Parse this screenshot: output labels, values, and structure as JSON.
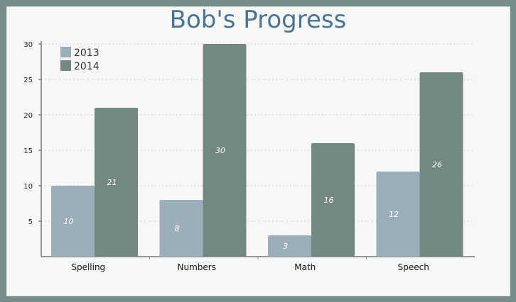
{
  "chart_data": {
    "type": "bar",
    "title": "Bob's Progress",
    "categories": [
      "Spelling",
      "Numbers",
      "Math",
      "Speech"
    ],
    "series": [
      {
        "name": "2013",
        "values": [
          10,
          8,
          3,
          12
        ],
        "color": "#9caeba"
      },
      {
        "name": "2014",
        "values": [
          21,
          30,
          16,
          26
        ],
        "color": "#738880"
      }
    ],
    "yticks": [
      5,
      10,
      15,
      20,
      25,
      30
    ],
    "ylim": [
      0,
      30
    ],
    "xlabel": "",
    "ylabel": "",
    "grid": true,
    "legend": "top-left"
  }
}
